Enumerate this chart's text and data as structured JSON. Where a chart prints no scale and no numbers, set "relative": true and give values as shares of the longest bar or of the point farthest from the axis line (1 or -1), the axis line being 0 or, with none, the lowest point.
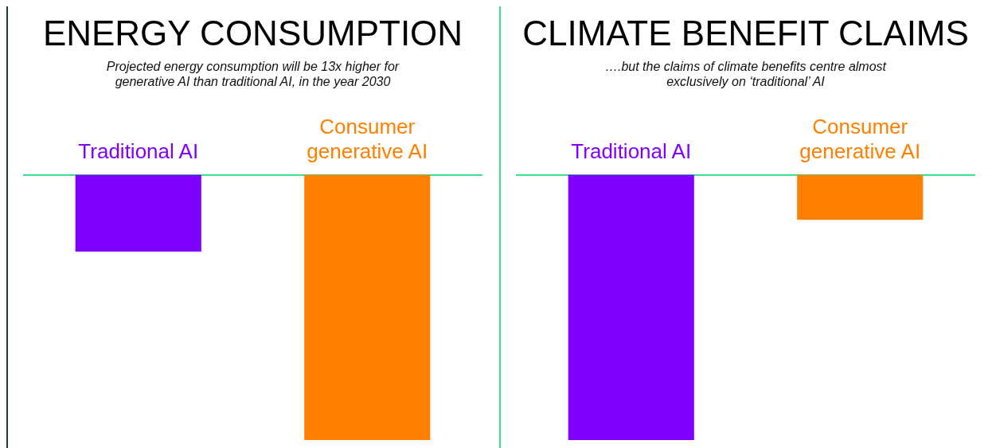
{
  "chart_data": [
    {
      "type": "bar",
      "title": "ENERGY CONSUMPTION",
      "subtitle": "Projected energy consumption will be 13x higher for generative AI than traditional AI, in the year 2030",
      "categories": [
        "Traditional AI",
        "Consumer generative AI"
      ],
      "values": [
        -0.29,
        -1
      ],
      "colors": [
        "#7f00ff",
        "#ff7f00"
      ],
      "relative": true,
      "grid": false,
      "legend": false
    },
    {
      "type": "bar",
      "title": "CLIMATE BENEFIT CLAIMS",
      "subtitle": "….but the claims of climate benefits centre almost exclusively on ‘traditional’ AI",
      "categories": [
        "Traditional AI",
        "Consumer generative AI"
      ],
      "values": [
        -1,
        -0.17
      ],
      "colors": [
        "#7f00ff",
        "#ff7f00"
      ],
      "relative": true,
      "grid": false,
      "legend": false
    }
  ]
}
